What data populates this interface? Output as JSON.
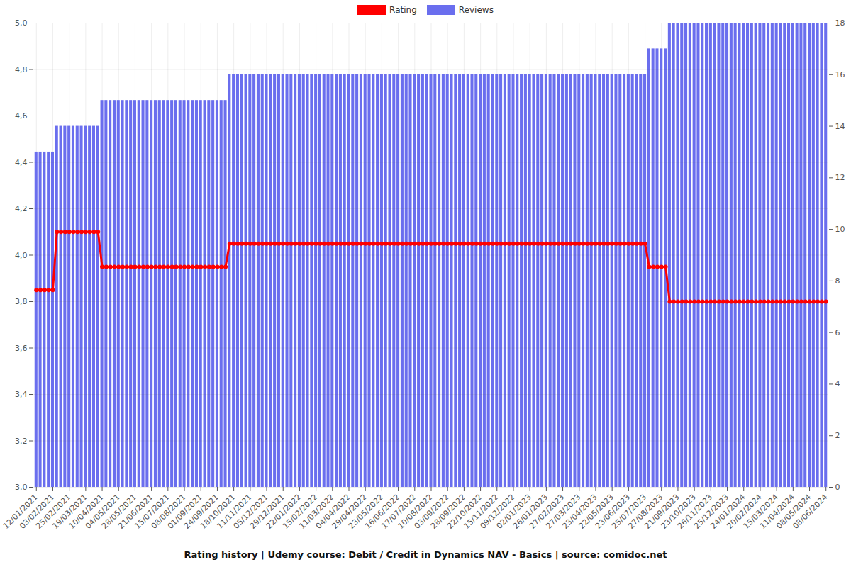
{
  "chart_data": {
    "type": "bar",
    "title": "Rating history | Udemy course: Debit / Credit in Dynamics NAV - Basics | source: comidoc.net",
    "categories": [
      "12/01/2021",
      null,
      null,
      null,
      "03/02/2021",
      null,
      null,
      null,
      "25/02/2021",
      null,
      null,
      null,
      "19/03/2021",
      null,
      null,
      null,
      "10/04/2021",
      null,
      null,
      null,
      "04/05/2021",
      null,
      null,
      null,
      "28/05/2021",
      null,
      null,
      null,
      "21/06/2021",
      null,
      null,
      null,
      "15/07/2021",
      null,
      null,
      null,
      "08/08/2021",
      null,
      null,
      null,
      "01/09/2021",
      null,
      null,
      null,
      "24/09/2021",
      null,
      null,
      null,
      "18/10/2021",
      null,
      null,
      null,
      "11/11/2021",
      null,
      null,
      null,
      "05/12/2021",
      null,
      null,
      null,
      "29/12/2021",
      null,
      null,
      null,
      "22/01/2022",
      null,
      null,
      null,
      "15/02/2022",
      null,
      null,
      null,
      "11/03/2022",
      null,
      null,
      null,
      "04/04/2022",
      null,
      null,
      null,
      "29/04/2022",
      null,
      null,
      null,
      "23/05/2022",
      null,
      null,
      null,
      "16/06/2022",
      null,
      null,
      null,
      "17/07/2022",
      null,
      null,
      null,
      "10/08/2022",
      null,
      null,
      null,
      "03/09/2022",
      null,
      null,
      null,
      "28/09/2022",
      null,
      null,
      null,
      "22/10/2022",
      null,
      null,
      null,
      "15/11/2022",
      null,
      null,
      null,
      "09/12/2022",
      null,
      null,
      null,
      "02/01/2023",
      null,
      null,
      null,
      "26/01/2023",
      null,
      null,
      null,
      "27/02/2023",
      null,
      null,
      null,
      "27/03/2023",
      null,
      null,
      null,
      "23/04/2023",
      null,
      null,
      null,
      "22/05/2023",
      null,
      null,
      null,
      "23/06/2023",
      null,
      null,
      null,
      "25/07/2023",
      null,
      null,
      null,
      "27/08/2023",
      null,
      null,
      null,
      "21/09/2023",
      null,
      null,
      null,
      "23/10/2023",
      null,
      null,
      null,
      "26/11/2023",
      null,
      null,
      null,
      "25/12/2023",
      null,
      null,
      null,
      "24/01/2024",
      null,
      null,
      null,
      "20/02/2024",
      null,
      null,
      null,
      "15/03/2024",
      null,
      null,
      null,
      "11/04/2024",
      null,
      null,
      null,
      "08/05/2024",
      null,
      null,
      null,
      "08/06/2024"
    ],
    "series": [
      {
        "name": "Rating",
        "type": "line",
        "color": "#ff0000",
        "marker": "circle",
        "values": [
          3.85,
          3.85,
          3.85,
          3.85,
          3.85,
          4.1,
          4.1,
          4.1,
          4.1,
          4.1,
          4.1,
          4.1,
          4.1,
          4.1,
          4.1,
          4.1,
          3.95,
          3.95,
          3.95,
          3.95,
          3.95,
          3.95,
          3.95,
          3.95,
          3.95,
          3.95,
          3.95,
          3.95,
          3.95,
          3.95,
          3.95,
          3.95,
          3.95,
          3.95,
          3.95,
          3.95,
          3.95,
          3.95,
          3.95,
          3.95,
          3.95,
          3.95,
          3.95,
          3.95,
          3.95,
          3.95,
          3.95,
          4.05,
          4.05,
          4.05,
          4.05,
          4.05,
          4.05,
          4.05,
          4.05,
          4.05,
          4.05,
          4.05,
          4.05,
          4.05,
          4.05,
          4.05,
          4.05,
          4.05,
          4.05,
          4.05,
          4.05,
          4.05,
          4.05,
          4.05,
          4.05,
          4.05,
          4.05,
          4.05,
          4.05,
          4.05,
          4.05,
          4.05,
          4.05,
          4.05,
          4.05,
          4.05,
          4.05,
          4.05,
          4.05,
          4.05,
          4.05,
          4.05,
          4.05,
          4.05,
          4.05,
          4.05,
          4.05,
          4.05,
          4.05,
          4.05,
          4.05,
          4.05,
          4.05,
          4.05,
          4.05,
          4.05,
          4.05,
          4.05,
          4.05,
          4.05,
          4.05,
          4.05,
          4.05,
          4.05,
          4.05,
          4.05,
          4.05,
          4.05,
          4.05,
          4.05,
          4.05,
          4.05,
          4.05,
          4.05,
          4.05,
          4.05,
          4.05,
          4.05,
          4.05,
          4.05,
          4.05,
          4.05,
          4.05,
          4.05,
          4.05,
          4.05,
          4.05,
          4.05,
          4.05,
          4.05,
          4.05,
          4.05,
          4.05,
          4.05,
          4.05,
          4.05,
          4.05,
          4.05,
          4.05,
          4.05,
          4.05,
          4.05,
          4.05,
          3.95,
          3.95,
          3.95,
          3.95,
          3.95,
          3.8,
          3.8,
          3.8,
          3.8,
          3.8,
          3.8,
          3.8,
          3.8,
          3.8,
          3.8,
          3.8,
          3.8,
          3.8,
          3.8,
          3.8,
          3.8,
          3.8,
          3.8,
          3.8,
          3.8,
          3.8,
          3.8,
          3.8,
          3.8,
          3.8,
          3.8,
          3.8,
          3.8,
          3.8,
          3.8,
          3.8,
          3.8,
          3.8,
          3.8,
          3.8,
          3.8,
          3.8,
          3.8,
          3.8
        ]
      },
      {
        "name": "Reviews",
        "type": "bar",
        "color": "#6a6eee",
        "axis": "y2",
        "values": [
          13,
          13,
          13,
          13,
          13,
          14,
          14,
          14,
          14,
          14,
          14,
          14,
          14,
          14,
          14,
          14,
          15,
          15,
          15,
          15,
          15,
          15,
          15,
          15,
          15,
          15,
          15,
          15,
          15,
          15,
          15,
          15,
          15,
          15,
          15,
          15,
          15,
          15,
          15,
          15,
          15,
          15,
          15,
          15,
          15,
          15,
          15,
          16,
          16,
          16,
          16,
          16,
          16,
          16,
          16,
          16,
          16,
          16,
          16,
          16,
          16,
          16,
          16,
          16,
          16,
          16,
          16,
          16,
          16,
          16,
          16,
          16,
          16,
          16,
          16,
          16,
          16,
          16,
          16,
          16,
          16,
          16,
          16,
          16,
          16,
          16,
          16,
          16,
          16,
          16,
          16,
          16,
          16,
          16,
          16,
          16,
          16,
          16,
          16,
          16,
          16,
          16,
          16,
          16,
          16,
          16,
          16,
          16,
          16,
          16,
          16,
          16,
          16,
          16,
          16,
          16,
          16,
          16,
          16,
          16,
          16,
          16,
          16,
          16,
          16,
          16,
          16,
          16,
          16,
          16,
          16,
          16,
          16,
          16,
          16,
          16,
          16,
          16,
          16,
          16,
          16,
          16,
          16,
          16,
          16,
          16,
          16,
          16,
          16,
          17,
          17,
          17,
          17,
          17,
          18,
          18,
          18,
          18,
          18,
          18,
          18,
          18,
          18,
          18,
          18,
          18,
          18,
          18,
          18,
          18,
          18,
          18,
          18,
          18,
          18,
          18,
          18,
          18,
          18,
          18,
          18,
          18,
          18,
          18,
          18,
          18,
          18,
          18,
          18,
          18,
          18,
          18,
          18
        ]
      }
    ],
    "ylim": [
      3,
      5
    ],
    "yticks": [
      {
        "value": 3,
        "label": "3,0"
      },
      {
        "value": 3.2,
        "label": "3,2"
      },
      {
        "value": 3.4,
        "label": "3,4"
      },
      {
        "value": 3.6,
        "label": "3,6"
      },
      {
        "value": 3.8,
        "label": "3,8"
      },
      {
        "value": 4,
        "label": "4,0"
      },
      {
        "value": 4.2,
        "label": "4,2"
      },
      {
        "value": 4.4,
        "label": "4,4"
      },
      {
        "value": 4.6,
        "label": "4,6"
      },
      {
        "value": 4.8,
        "label": "4,8"
      },
      {
        "value": 5,
        "label": "5,0"
      }
    ],
    "y2lim": [
      0,
      18
    ],
    "y2ticks": [
      0,
      2,
      4,
      6,
      8,
      10,
      12,
      14,
      16,
      18
    ],
    "grid": true,
    "legend": "top"
  }
}
